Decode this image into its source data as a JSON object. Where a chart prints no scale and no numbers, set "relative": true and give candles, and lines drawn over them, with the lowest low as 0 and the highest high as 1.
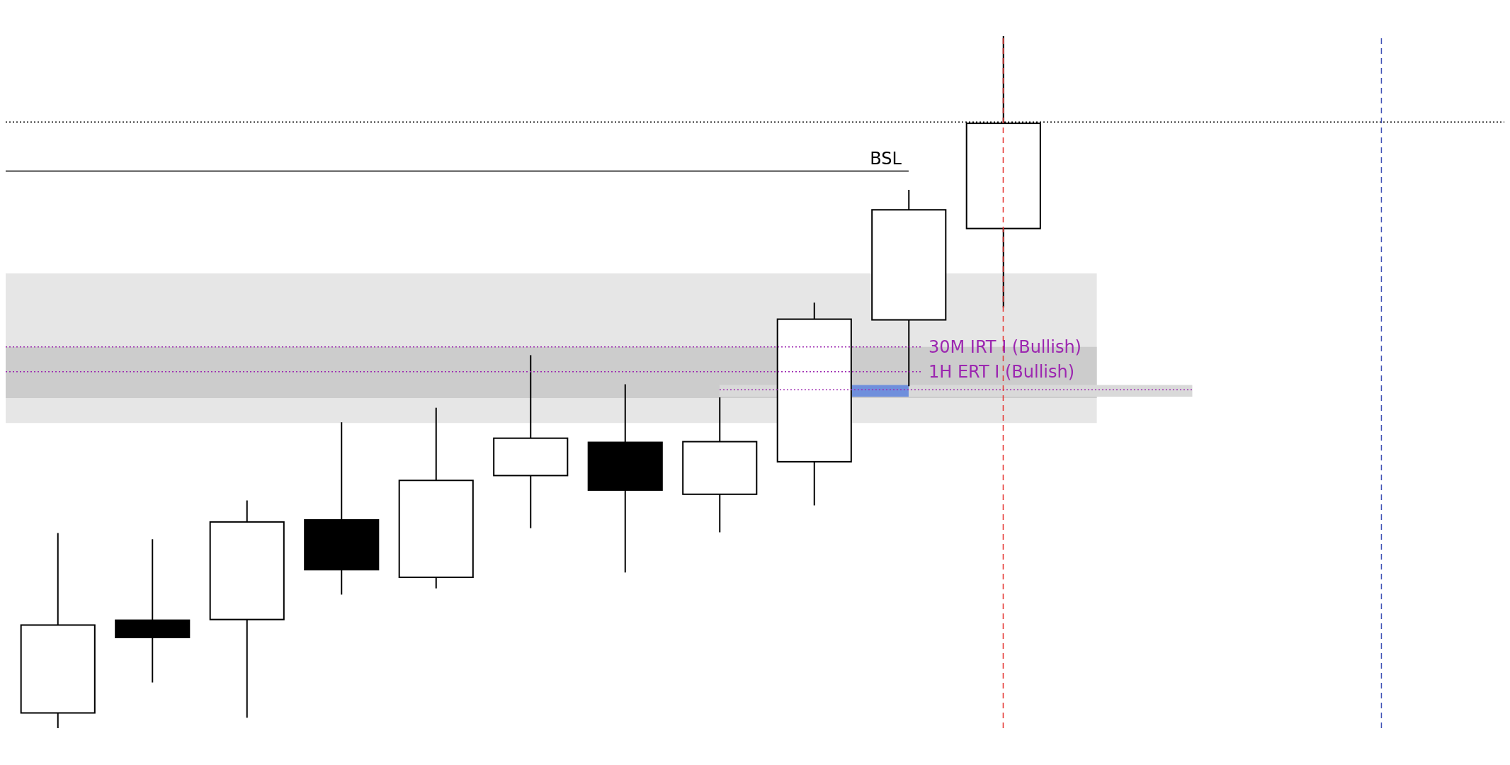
{
  "chart_data": {
    "type": "candlestick",
    "relative": true,
    "categories": [
      null,
      null,
      null,
      null,
      null,
      null,
      null,
      null,
      null,
      null,
      null
    ],
    "ohlc": [
      [
        0.022,
        0.282,
        0,
        0.149
      ],
      [
        0.156,
        0.273,
        0.066,
        0.131
      ],
      [
        0.157,
        0.329,
        0.015,
        0.298
      ],
      [
        0.301,
        0.442,
        0.193,
        0.229
      ],
      [
        0.218,
        0.463,
        0.202,
        0.358
      ],
      [
        0.365,
        0.539,
        0.289,
        0.419
      ],
      [
        0.413,
        0.497,
        0.225,
        0.344
      ],
      [
        0.338,
        0.478,
        0.283,
        0.414
      ],
      [
        0.385,
        0.615,
        0.322,
        0.591
      ],
      [
        0.59,
        0.778,
        0.494,
        0.749
      ],
      [
        0.722,
        1,
        0.608,
        0.874
      ]
    ],
    "colors": [
      "#ffffff",
      "#000000",
      "#ffffff",
      "#000000",
      "#ffffff",
      "#ffffff",
      "#000000",
      "#ffffff",
      "#ffffff",
      "#ffffff",
      "#ffffff"
    ],
    "bands": [
      {
        "axis": "y",
        "from": 0.441,
        "to": 0.657,
        "color": "#e6e6e6"
      },
      {
        "axis": "y",
        "from": 0.477,
        "to": 0.551,
        "color": "#cccccc"
      },
      {
        "axis": "y",
        "from": 0.479,
        "to": 0.496,
        "color": "#d9d9d9"
      },
      {
        "axis": "y",
        "from": 0.479,
        "to": 0.496,
        "color": "#6f8fdc"
      }
    ],
    "ref_lines": [
      {
        "axis": "y",
        "value": 0.876,
        "color": "#000000",
        "line_style": "dotted"
      },
      {
        "axis": "y",
        "value": 0.805,
        "label": "BSL",
        "color": "#000000",
        "line_style": "solid"
      },
      {
        "axis": "y",
        "value": 0.551,
        "label": "30M IRT I (Bullish)",
        "color": "#9c27b0",
        "line_style": "dotted"
      },
      {
        "axis": "y",
        "value": 0.515,
        "label": "1H ERT I (Bullish)",
        "color": "#9c27b0",
        "line_style": "dotted"
      },
      {
        "axis": "y",
        "value": 0.489,
        "color": "#9c27b0",
        "line_style": "dotted"
      }
    ],
    "grid": false,
    "legend": false
  }
}
